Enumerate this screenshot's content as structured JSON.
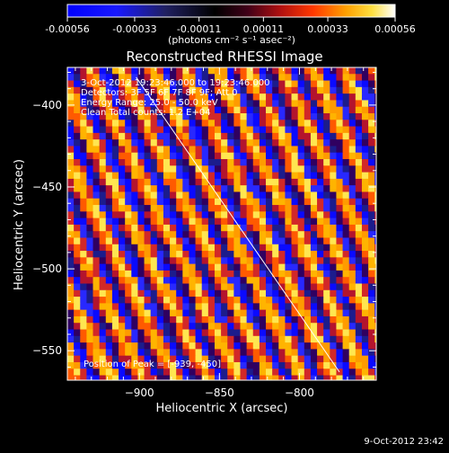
{
  "chart_data": {
    "type": "heatmap",
    "title": "Reconstructed RHESSI Image",
    "xlabel": "Heliocentric X (arcsec)",
    "ylabel": "Heliocentric Y (arcsec)",
    "xlim": [
      -945,
      -752
    ],
    "ylim": [
      -568,
      -377
    ],
    "xticks": [
      -900,
      -850,
      -800
    ],
    "yticks": [
      -400,
      -450,
      -500,
      -550
    ],
    "colorbar": {
      "label": "(photons cm⁻² s⁻¹ asec⁻²)",
      "range": [
        -0.00056,
        0.00056
      ],
      "tick_labels": [
        "-0.00056",
        "-0.00033",
        "-0.00011",
        "0.00011",
        "0.00033",
        "0.00056"
      ],
      "tick_values": [
        -0.00056,
        -0.00033,
        -0.00011,
        0.00011,
        0.00033,
        0.00056
      ]
    },
    "annotations": [
      "3-Oct-2012 19:23:46.000 to 19:23:46.000",
      "Detectors: 3F 5F 6F 7F 8F 9F; Att 0",
      "Energy Range: 25.0 - 50.0 keV",
      "Clean     Total counts: 1.2 E+04"
    ],
    "peak_label": "Position of Peak = [-939, -450]",
    "date_stamp": "9-Oct-2012 23:42",
    "pattern": {
      "description_free": true,
      "pixel_size_arcsec": 4,
      "stripe_period_pixels": 5,
      "stripe_slope_y_per_x": 2
    },
    "line_overlay": {
      "x1": -902,
      "y1": -383,
      "x2": -775,
      "y2": -563
    }
  }
}
